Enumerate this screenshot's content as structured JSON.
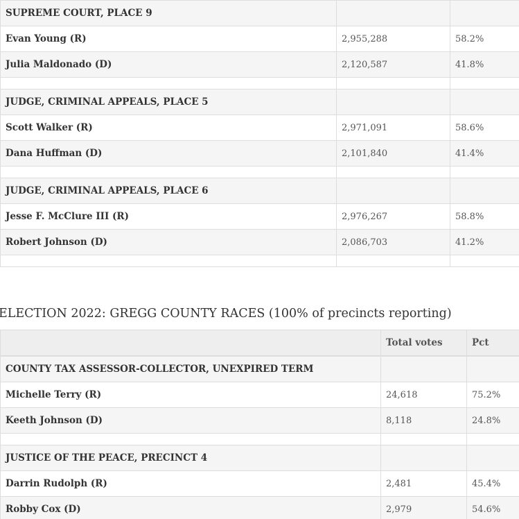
{
  "state_races": [
    {
      "race": "SUPREME COURT, PLACE 9",
      "candidates": [
        {
          "name": "Evan Young (R)",
          "votes": "2,955,288",
          "pct": "58.2%"
        },
        {
          "name": "Julia Maldonado (D)",
          "votes": "2,120,587",
          "pct": "41.8%"
        }
      ]
    },
    {
      "race": "JUDGE, CRIMINAL APPEALS, PLACE 5",
      "candidates": [
        {
          "name": "Scott Walker (R)",
          "votes": "2,971,091",
          "pct": "58.6%"
        },
        {
          "name": "Dana Huffman (D)",
          "votes": "2,101,840",
          "pct": "41.4%"
        }
      ]
    },
    {
      "race": "JUDGE, CRIMINAL APPEALS, PLACE 6",
      "candidates": [
        {
          "name": "Jesse F. McClure III (R)",
          "votes": "2,976,267",
          "pct": "58.8%"
        },
        {
          "name": "Robert Johnson (D)",
          "votes": "2,086,703",
          "pct": "41.2%"
        }
      ]
    }
  ],
  "county": {
    "heading": "ELECTION 2022: GREGG COUNTY RACES (100% of precincts reporting)",
    "col_votes": "Total votes",
    "col_pct": "Pct",
    "races": [
      {
        "race": "COUNTY TAX ASSESSOR-COLLECTOR, UNEXPIRED TERM",
        "candidates": [
          {
            "name": "Michelle Terry (R)",
            "votes": "24,618",
            "pct": "75.2%"
          },
          {
            "name": "Keeth Johnson (D)",
            "votes": "8,118",
            "pct": "24.8%"
          }
        ]
      },
      {
        "race": "JUSTICE OF THE PEACE, PRECINCT 4",
        "candidates": [
          {
            "name": "Darrin Rudolph (R)",
            "votes": "2,481",
            "pct": "45.4%"
          },
          {
            "name": "Robby Cox (D)",
            "votes": "2,979",
            "pct": "54.6%"
          }
        ]
      }
    ]
  }
}
